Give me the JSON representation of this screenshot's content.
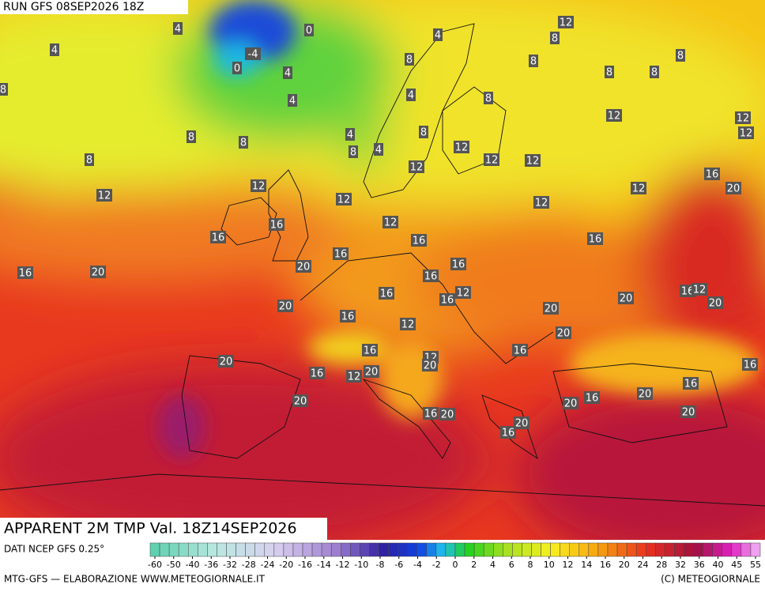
{
  "header": {
    "run": "RUN GFS 08SEP2026 18Z"
  },
  "map": {
    "labels": [
      12,
      8,
      4,
      8,
      8,
      8,
      8,
      4,
      4,
      0,
      -4,
      0,
      4,
      4,
      8,
      8,
      4,
      8,
      12,
      12,
      12,
      4,
      8,
      4,
      8,
      8,
      8,
      8,
      12,
      12,
      12,
      12,
      16,
      20,
      12,
      12,
      12,
      12,
      12,
      12,
      16,
      16,
      16,
      16,
      16,
      20,
      16,
      16,
      20,
      16,
      16,
      12,
      16,
      16,
      12,
      20,
      20,
      20,
      20,
      16,
      12,
      20,
      16,
      16,
      12,
      20,
      20,
      16,
      12,
      20,
      16,
      16,
      20,
      16,
      20,
      20,
      16,
      20,
      20,
      16,
      20
    ]
  },
  "footer": {
    "title": "APPARENT 2M TMP Val. 18Z14SEP2026",
    "source": "DATI NCEP GFS 0.25°",
    "credit": "MTG-GFS — ELABORAZIONE WWW.METEOGIORNALE.IT",
    "copyright": "(C) METEOGIORNALE"
  },
  "colorbar": {
    "ticks": [
      -60,
      -50,
      -40,
      -36,
      -32,
      -28,
      -24,
      -20,
      -16,
      -14,
      -12,
      -10,
      -8,
      -6,
      -4,
      -2,
      0,
      2,
      4,
      6,
      8,
      10,
      12,
      14,
      16,
      20,
      24,
      28,
      32,
      36,
      40,
      45,
      55
    ]
  }
}
